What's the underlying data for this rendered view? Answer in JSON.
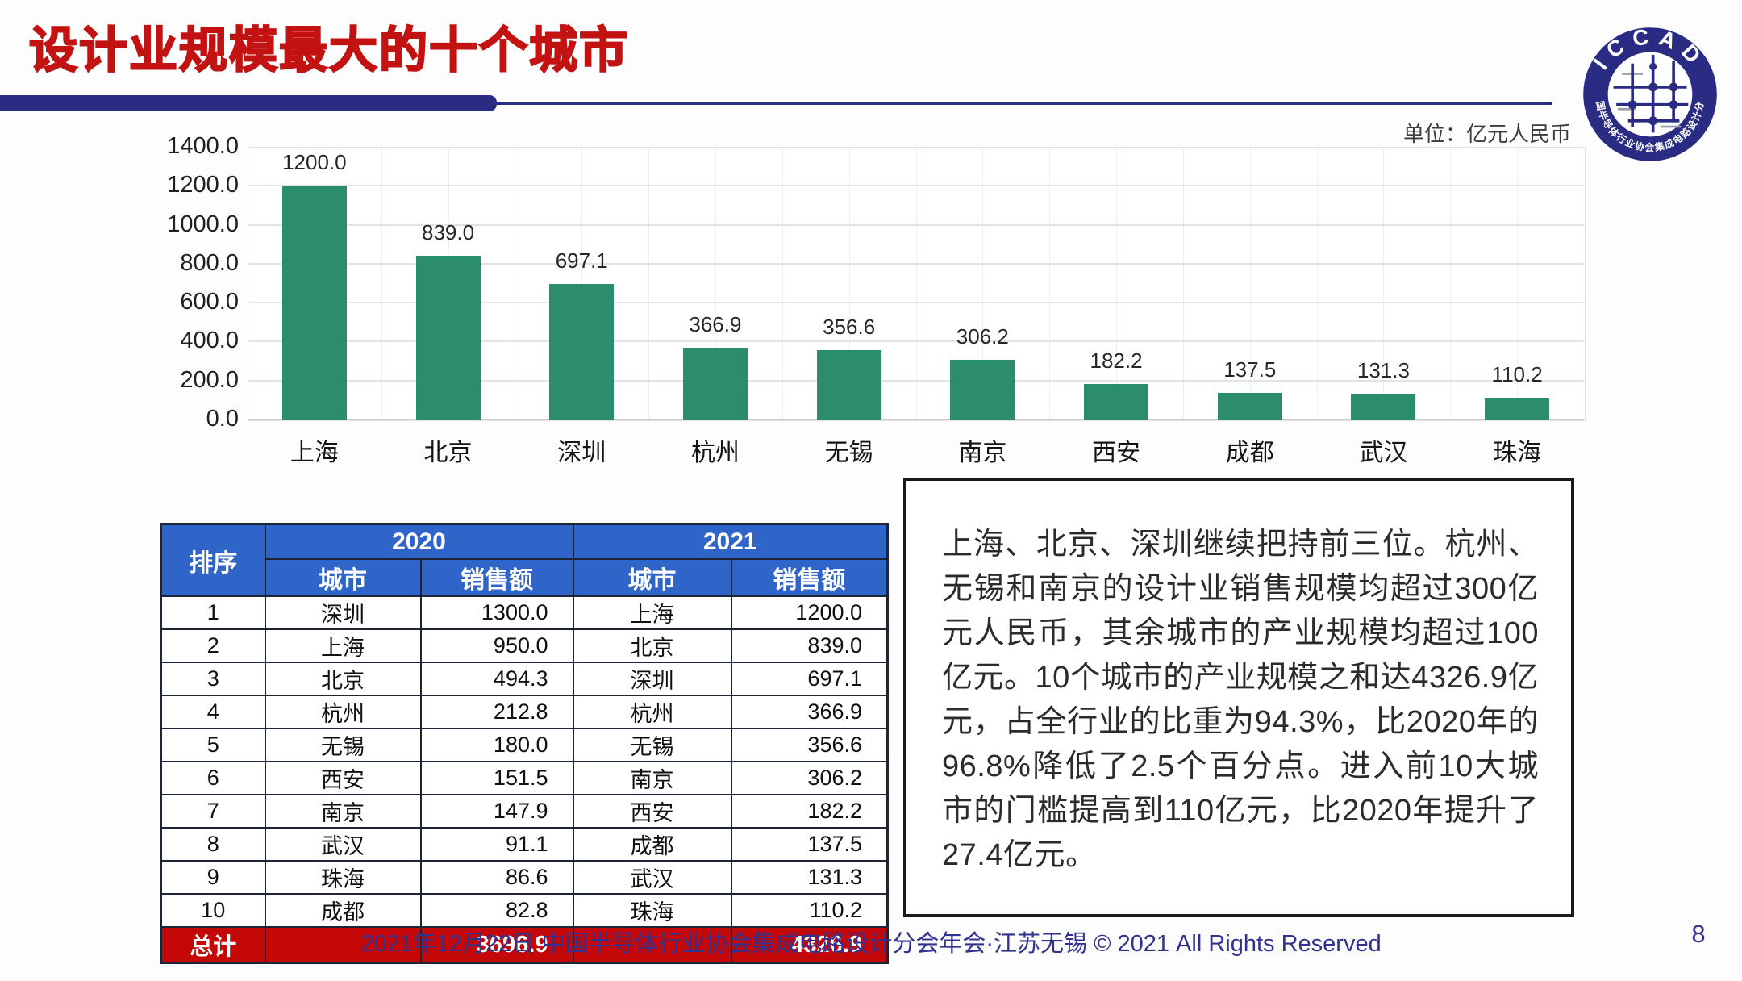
{
  "slide": {
    "title": "设计业规模最大的十个城市",
    "unit_label": "单位：亿元人民币",
    "footer_text": "2021年12月22日 中国半导体行业协会集成电路设计分会年会·江苏无锡 © 2021 All Rights Reserved",
    "page_number": "8"
  },
  "logo": {
    "acronym": "ICCAD",
    "ring_text": "中国半导体行业协会集成电路设计分会"
  },
  "chart_data": {
    "type": "bar",
    "title": "",
    "unit": "亿元人民币",
    "categories": [
      "上海",
      "北京",
      "深圳",
      "杭州",
      "无锡",
      "南京",
      "西安",
      "成都",
      "武汉",
      "珠海"
    ],
    "values": [
      1200.0,
      839.0,
      697.1,
      366.9,
      356.6,
      306.2,
      182.2,
      137.5,
      131.3,
      110.2
    ],
    "xlabel": "",
    "ylabel": "",
    "ylim": [
      0,
      1400
    ],
    "ytick_step": 200,
    "ytick_decimals": 1,
    "value_label_decimals": 1,
    "grid": true,
    "legend": "none",
    "bar_color": "#2B8C6E"
  },
  "table": {
    "rank_header": "排序",
    "year_2020": "2020",
    "year_2021": "2021",
    "city_header": "城市",
    "sales_header": "销售额",
    "rows": [
      [
        "1",
        "深圳",
        "1300.0",
        "上海",
        "1200.0"
      ],
      [
        "2",
        "上海",
        "950.0",
        "北京",
        "839.0"
      ],
      [
        "3",
        "北京",
        "494.3",
        "深圳",
        "697.1"
      ],
      [
        "4",
        "杭州",
        "212.8",
        "杭州",
        "366.9"
      ],
      [
        "5",
        "无锡",
        "180.0",
        "无锡",
        "356.6"
      ],
      [
        "6",
        "西安",
        "151.5",
        "南京",
        "306.2"
      ],
      [
        "7",
        "南京",
        "147.9",
        "西安",
        "182.2"
      ],
      [
        "8",
        "武汉",
        "91.1",
        "成都",
        "137.5"
      ],
      [
        "9",
        "珠海",
        "86.6",
        "武汉",
        "131.3"
      ],
      [
        "10",
        "成都",
        "82.8",
        "珠海",
        "110.2"
      ]
    ],
    "total_label": "总计",
    "total_2020": "3696.9",
    "total_2021": "4326.9"
  },
  "note": {
    "text": "上海、北京、深圳继续把持前三位。杭州、无锡和南京的设计业销售规模均超过300亿元人民币，其余城市的产业规模均超过100亿元。10个城市的产业规模之和达4326.9亿元，占全行业的比重为94.3%，比2020年的96.8%降低了2.5个百分点。进入前10大城市的门槛提高到110亿元，比2020年提升了27.4亿元。"
  },
  "colors": {
    "title_red": "#C21212",
    "accent_navy": "#2A2C84",
    "bar_green": "#2B8C6E",
    "table_header_blue": "#2F64C8",
    "total_row_red": "#C40707",
    "footer_navy": "#31328E"
  }
}
